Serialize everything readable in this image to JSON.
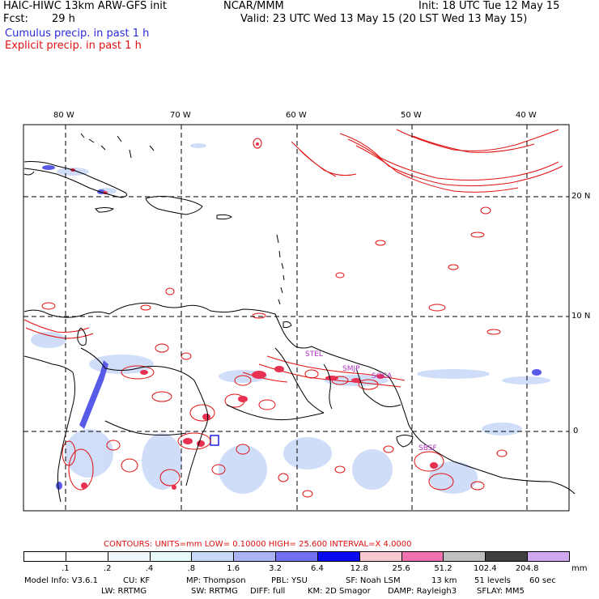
{
  "header": {
    "model_title": "HAIC-HIWC 13km ARW-GFS init",
    "org": "NCAR/MMM",
    "init_time": "Init: 18 UTC Tue 12 May 15",
    "forecast_label": "Fcst:",
    "forecast_hours": "29 h",
    "valid_time": "Valid: 23 UTC Wed 13 May 15 (20 LST Wed 13 May 15)",
    "cumulus_label": "Cumulus precip. in past 1 h",
    "explicit_label": "Explicit precip. in past 1 h"
  },
  "map": {
    "lon_labels": [
      "80 W",
      "70 W",
      "60 W",
      "50 W",
      "40 W"
    ],
    "lat_labels": [
      "20 N",
      "10 N",
      "0"
    ],
    "stations": [
      "STEL",
      "SMJP",
      "SOCA",
      "SBSF"
    ]
  },
  "contour_info": {
    "text": "CONTOURS:  UNITS=mm  LOW= 0.10000      HIGH=  25.600      INTERVAL=X  4.0000"
  },
  "colorbar": {
    "units": "mm",
    "levels": [
      ".1",
      ".2",
      ".4",
      ".8",
      "1.6",
      "3.2",
      "6.4",
      "12.8",
      "25.6",
      "51.2",
      "102.4",
      "204.8"
    ],
    "colors": [
      "#ffffff",
      "#ffffff",
      "#eef6fc",
      "#e6fafa",
      "#c8d8f8",
      "#aab4f4",
      "#7070f0",
      "#0a0af0",
      "#f8c8d0",
      "#f070b0",
      "#c0c0c0",
      "#404040",
      "#d0a8f0"
    ]
  },
  "model_info": {
    "line1": [
      "Model Info: V3.6.1",
      "CU: KF",
      "MP: Thompson",
      "PBL: YSU",
      "SF: Noah LSM",
      "13 km",
      "51 levels",
      "60 sec"
    ],
    "line2": [
      "LW: RRTMG",
      "SW: RRTMG",
      "DIFF: full",
      "KM: 2D Smagor",
      "DAMP: Rayleigh3",
      "SFLAY: MM5"
    ]
  },
  "colors": {
    "cumulus": "#2a2adf",
    "explicit": "#e01010",
    "coastline": "#000000",
    "grid": "#000000"
  }
}
